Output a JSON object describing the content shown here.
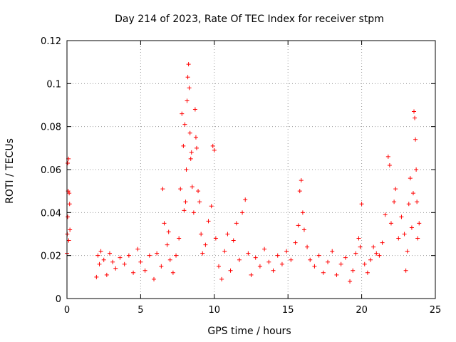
{
  "chart_data": {
    "type": "scatter",
    "title": "Day 214 of 2023, Rate Of TEC Index for receiver stpm",
    "xlabel": "GPS time / hours",
    "ylabel": "ROTI / TECUs",
    "xlim": [
      0,
      25
    ],
    "ylim": [
      0,
      0.12
    ],
    "xticks": [
      "0",
      "5",
      "10",
      "15",
      "20",
      "25"
    ],
    "yticks": [
      "0",
      "0.02",
      "0.04",
      "0.06",
      "0.08",
      "0.1",
      "0.12"
    ],
    "grid": true,
    "marker": "+",
    "color": "#ff0000",
    "series": [
      {
        "name": "",
        "points": [
          [
            0.0,
            0.021
          ],
          [
            0.02,
            0.03
          ],
          [
            0.05,
            0.038
          ],
          [
            0.05,
            0.063
          ],
          [
            0.08,
            0.05
          ],
          [
            0.1,
            0.065
          ],
          [
            0.12,
            0.027
          ],
          [
            0.15,
            0.049
          ],
          [
            0.18,
            0.044
          ],
          [
            0.2,
            0.032
          ],
          [
            2.0,
            0.01
          ],
          [
            2.1,
            0.02
          ],
          [
            2.2,
            0.016
          ],
          [
            2.3,
            0.022
          ],
          [
            2.5,
            0.018
          ],
          [
            2.7,
            0.011
          ],
          [
            2.9,
            0.021
          ],
          [
            3.1,
            0.017
          ],
          [
            3.3,
            0.014
          ],
          [
            3.6,
            0.019
          ],
          [
            3.9,
            0.016
          ],
          [
            4.2,
            0.02
          ],
          [
            4.5,
            0.012
          ],
          [
            4.8,
            0.023
          ],
          [
            5.0,
            0.017
          ],
          [
            5.3,
            0.013
          ],
          [
            5.6,
            0.02
          ],
          [
            5.9,
            0.009
          ],
          [
            6.1,
            0.021
          ],
          [
            6.4,
            0.015
          ],
          [
            6.5,
            0.051
          ],
          [
            6.6,
            0.035
          ],
          [
            6.8,
            0.025
          ],
          [
            6.9,
            0.031
          ],
          [
            7.0,
            0.018
          ],
          [
            7.2,
            0.012
          ],
          [
            7.4,
            0.02
          ],
          [
            7.6,
            0.028
          ],
          [
            7.7,
            0.051
          ],
          [
            7.8,
            0.086
          ],
          [
            7.9,
            0.071
          ],
          [
            7.95,
            0.041
          ],
          [
            8.0,
            0.081
          ],
          [
            8.05,
            0.045
          ],
          [
            8.1,
            0.06
          ],
          [
            8.15,
            0.092
          ],
          [
            8.2,
            0.103
          ],
          [
            8.25,
            0.109
          ],
          [
            8.3,
            0.098
          ],
          [
            8.35,
            0.077
          ],
          [
            8.4,
            0.065
          ],
          [
            8.45,
            0.068
          ],
          [
            8.5,
            0.052
          ],
          [
            8.6,
            0.04
          ],
          [
            8.7,
            0.088
          ],
          [
            8.75,
            0.075
          ],
          [
            8.8,
            0.07
          ],
          [
            8.9,
            0.05
          ],
          [
            9.0,
            0.045
          ],
          [
            9.1,
            0.03
          ],
          [
            9.2,
            0.021
          ],
          [
            9.4,
            0.025
          ],
          [
            9.6,
            0.036
          ],
          [
            9.8,
            0.043
          ],
          [
            9.9,
            0.071
          ],
          [
            10.0,
            0.069
          ],
          [
            10.1,
            0.028
          ],
          [
            10.3,
            0.015
          ],
          [
            10.5,
            0.009
          ],
          [
            10.7,
            0.022
          ],
          [
            10.9,
            0.03
          ],
          [
            11.1,
            0.013
          ],
          [
            11.3,
            0.027
          ],
          [
            11.5,
            0.035
          ],
          [
            11.7,
            0.018
          ],
          [
            11.9,
            0.04
          ],
          [
            12.1,
            0.046
          ],
          [
            12.3,
            0.021
          ],
          [
            12.5,
            0.011
          ],
          [
            12.8,
            0.019
          ],
          [
            13.1,
            0.015
          ],
          [
            13.4,
            0.023
          ],
          [
            13.7,
            0.017
          ],
          [
            14.0,
            0.013
          ],
          [
            14.3,
            0.02
          ],
          [
            14.6,
            0.016
          ],
          [
            14.9,
            0.022
          ],
          [
            15.2,
            0.018
          ],
          [
            15.5,
            0.026
          ],
          [
            15.7,
            0.034
          ],
          [
            15.8,
            0.05
          ],
          [
            15.9,
            0.055
          ],
          [
            16.0,
            0.04
          ],
          [
            16.1,
            0.032
          ],
          [
            16.3,
            0.024
          ],
          [
            16.5,
            0.018
          ],
          [
            16.8,
            0.015
          ],
          [
            17.1,
            0.02
          ],
          [
            17.4,
            0.012
          ],
          [
            17.7,
            0.017
          ],
          [
            18.0,
            0.022
          ],
          [
            18.3,
            0.011
          ],
          [
            18.6,
            0.016
          ],
          [
            18.9,
            0.019
          ],
          [
            19.2,
            0.008
          ],
          [
            19.4,
            0.013
          ],
          [
            19.6,
            0.021
          ],
          [
            19.8,
            0.028
          ],
          [
            19.9,
            0.024
          ],
          [
            20.0,
            0.044
          ],
          [
            20.2,
            0.016
          ],
          [
            20.4,
            0.012
          ],
          [
            20.6,
            0.018
          ],
          [
            20.8,
            0.024
          ],
          [
            21.0,
            0.021
          ],
          [
            21.2,
            0.02
          ],
          [
            21.4,
            0.026
          ],
          [
            21.6,
            0.039
          ],
          [
            21.8,
            0.066
          ],
          [
            21.9,
            0.062
          ],
          [
            22.0,
            0.035
          ],
          [
            22.2,
            0.045
          ],
          [
            22.3,
            0.051
          ],
          [
            22.5,
            0.028
          ],
          [
            22.7,
            0.038
          ],
          [
            22.9,
            0.03
          ],
          [
            23.0,
            0.013
          ],
          [
            23.1,
            0.022
          ],
          [
            23.2,
            0.044
          ],
          [
            23.3,
            0.056
          ],
          [
            23.4,
            0.033
          ],
          [
            23.5,
            0.049
          ],
          [
            23.55,
            0.087
          ],
          [
            23.6,
            0.084
          ],
          [
            23.65,
            0.074
          ],
          [
            23.7,
            0.06
          ],
          [
            23.75,
            0.045
          ],
          [
            23.8,
            0.028
          ],
          [
            23.9,
            0.035
          ]
        ]
      }
    ]
  }
}
